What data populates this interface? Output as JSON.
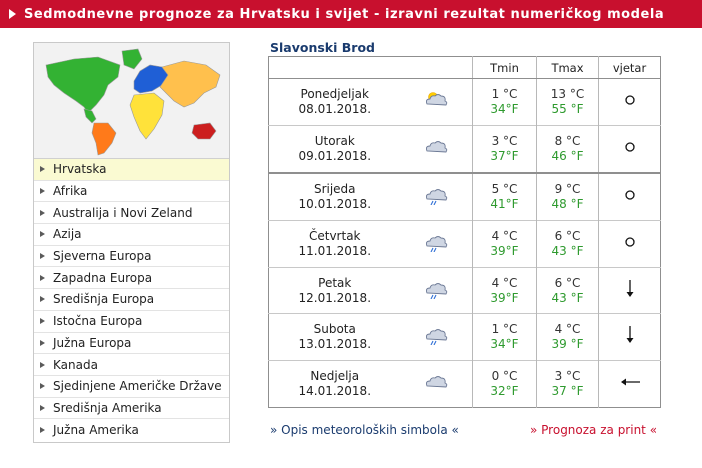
{
  "banner": {
    "title": "Sedmodnevne prognoze za Hrvatsku i svijet - izravni rezultat numeričkog modela"
  },
  "regions": [
    "Hrvatska",
    "Afrika",
    "Australija i Novi Zeland",
    "Azija",
    "Sjeverna Europa",
    "Zapadna Europa",
    "Središnja Europa",
    "Istočna Europa",
    "Južna Europa",
    "Kanada",
    "Sjedinjene Američke Države",
    "Središnja Amerika",
    "Južna Amerika"
  ],
  "selected_region": "Hrvatska",
  "map_colors": {
    "north_america": "#33b233",
    "europe": "#1f5fd6",
    "asia": "#ffc04d",
    "africa": "#ffe23a",
    "south_america": "#ff7a1a",
    "australia": "#cc1f1f",
    "greenland": "#33b233"
  },
  "forecast": {
    "city": "Slavonski Brod",
    "headers": {
      "tmin": "Tmin",
      "tmax": "Tmax",
      "wind": "vjetar"
    },
    "days": [
      {
        "day": "Ponedjeljak",
        "date": "08.01.2018.",
        "icon": "partly-sunny-icon",
        "tmin_c": "1 °C",
        "tmin_f": "34°F",
        "tmax_c": "13 °C",
        "tmax_f": "55 °F",
        "wind": "calm-icon"
      },
      {
        "day": "Utorak",
        "date": "09.01.2018.",
        "icon": "cloudy-icon",
        "tmin_c": "3 °C",
        "tmin_f": "37°F",
        "tmax_c": "8 °C",
        "tmax_f": "46 °F",
        "wind": "calm-icon"
      },
      {
        "day": "Srijeda",
        "date": "10.01.2018.",
        "icon": "rain-icon",
        "tmin_c": "5 °C",
        "tmin_f": "41°F",
        "tmax_c": "9 °C",
        "tmax_f": "48 °F",
        "wind": "calm-icon"
      },
      {
        "day": "Četvrtak",
        "date": "11.01.2018.",
        "icon": "rain-icon",
        "tmin_c": "4 °C",
        "tmin_f": "39°F",
        "tmax_c": "6 °C",
        "tmax_f": "43 °F",
        "wind": "calm-icon"
      },
      {
        "day": "Petak",
        "date": "12.01.2018.",
        "icon": "rain-icon",
        "tmin_c": "4 °C",
        "tmin_f": "39°F",
        "tmax_c": "6 °C",
        "tmax_f": "43 °F",
        "wind": "arrow-down-icon"
      },
      {
        "day": "Subota",
        "date": "13.01.2018.",
        "icon": "rain-icon",
        "tmin_c": "1 °C",
        "tmin_f": "34°F",
        "tmax_c": "4 °C",
        "tmax_f": "39 °F",
        "wind": "arrow-down-icon"
      },
      {
        "day": "Nedjelja",
        "date": "14.01.2018.",
        "icon": "cloudy-icon",
        "tmin_c": "0 °C",
        "tmin_f": "32°F",
        "tmax_c": "3 °C",
        "tmax_f": "37 °F",
        "wind": "arrow-left-icon"
      }
    ]
  },
  "links": {
    "symbols": "» Opis meteoroloških simbola «",
    "print": "» Prognoza za print «"
  }
}
